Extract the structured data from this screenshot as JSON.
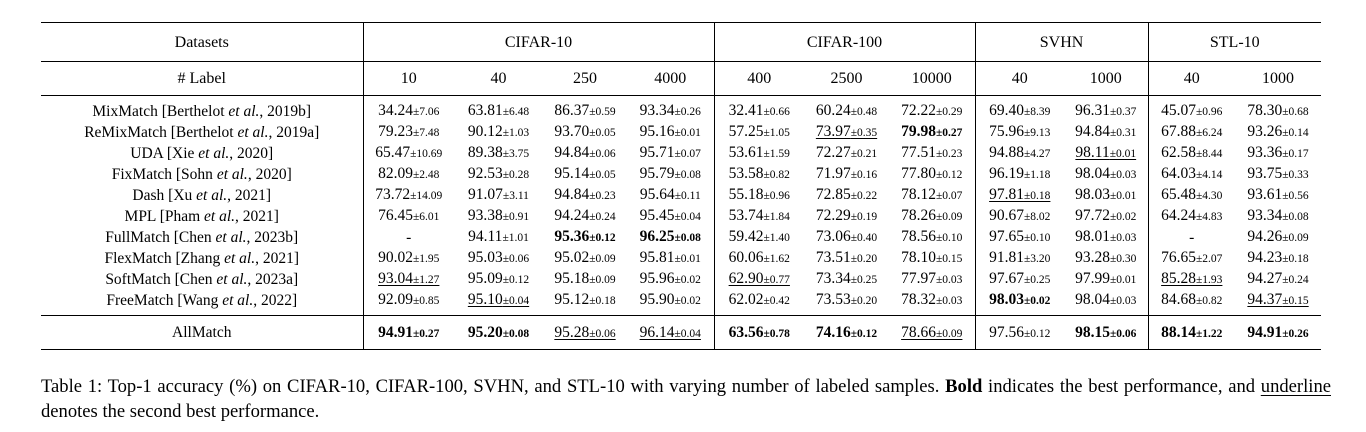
{
  "table": {
    "datasets_label": "Datasets",
    "labels_label": "# Label",
    "groups": [
      {
        "name": "CIFAR-10",
        "labels": [
          "10",
          "40",
          "250",
          "4000"
        ]
      },
      {
        "name": "CIFAR-100",
        "labels": [
          "400",
          "2500",
          "10000"
        ]
      },
      {
        "name": "SVHN",
        "labels": [
          "40",
          "1000"
        ]
      },
      {
        "name": "STL-10",
        "labels": [
          "40",
          "1000"
        ]
      }
    ],
    "rows": [
      {
        "method": "MixMatch [Berthelot et al., 2019b]",
        "cells": [
          {
            "v": "34.24",
            "s": "±7.06",
            "st": ""
          },
          {
            "v": "63.81",
            "s": "±6.48",
            "st": ""
          },
          {
            "v": "86.37",
            "s": "±0.59",
            "st": ""
          },
          {
            "v": "93.34",
            "s": "±0.26",
            "st": ""
          },
          {
            "v": "32.41",
            "s": "±0.66",
            "st": ""
          },
          {
            "v": "60.24",
            "s": "±0.48",
            "st": ""
          },
          {
            "v": "72.22",
            "s": "±0.29",
            "st": ""
          },
          {
            "v": "69.40",
            "s": "±8.39",
            "st": ""
          },
          {
            "v": "96.31",
            "s": "±0.37",
            "st": ""
          },
          {
            "v": "45.07",
            "s": "±0.96",
            "st": ""
          },
          {
            "v": "78.30",
            "s": "±0.68",
            "st": ""
          }
        ]
      },
      {
        "method": "ReMixMatch [Berthelot et al., 2019a]",
        "cells": [
          {
            "v": "79.23",
            "s": "±7.48",
            "st": ""
          },
          {
            "v": "90.12",
            "s": "±1.03",
            "st": ""
          },
          {
            "v": "93.70",
            "s": "±0.05",
            "st": ""
          },
          {
            "v": "95.16",
            "s": "±0.01",
            "st": ""
          },
          {
            "v": "57.25",
            "s": "±1.05",
            "st": ""
          },
          {
            "v": "73.97",
            "s": "±0.35",
            "st": "u"
          },
          {
            "v": "79.98",
            "s": "±0.27",
            "st": "b"
          },
          {
            "v": "75.96",
            "s": "±9.13",
            "st": ""
          },
          {
            "v": "94.84",
            "s": "±0.31",
            "st": ""
          },
          {
            "v": "67.88",
            "s": "±6.24",
            "st": ""
          },
          {
            "v": "93.26",
            "s": "±0.14",
            "st": ""
          }
        ]
      },
      {
        "method": "UDA [Xie et al., 2020]",
        "cells": [
          {
            "v": "65.47",
            "s": "±10.69",
            "st": ""
          },
          {
            "v": "89.38",
            "s": "±3.75",
            "st": ""
          },
          {
            "v": "94.84",
            "s": "±0.06",
            "st": ""
          },
          {
            "v": "95.71",
            "s": "±0.07",
            "st": ""
          },
          {
            "v": "53.61",
            "s": "±1.59",
            "st": ""
          },
          {
            "v": "72.27",
            "s": "±0.21",
            "st": ""
          },
          {
            "v": "77.51",
            "s": "±0.23",
            "st": ""
          },
          {
            "v": "94.88",
            "s": "±4.27",
            "st": ""
          },
          {
            "v": "98.11",
            "s": "±0.01",
            "st": "u"
          },
          {
            "v": "62.58",
            "s": "±8.44",
            "st": ""
          },
          {
            "v": "93.36",
            "s": "±0.17",
            "st": ""
          }
        ]
      },
      {
        "method": "FixMatch [Sohn et al., 2020]",
        "cells": [
          {
            "v": "82.09",
            "s": "±2.48",
            "st": ""
          },
          {
            "v": "92.53",
            "s": "±0.28",
            "st": ""
          },
          {
            "v": "95.14",
            "s": "±0.05",
            "st": ""
          },
          {
            "v": "95.79",
            "s": "±0.08",
            "st": ""
          },
          {
            "v": "53.58",
            "s": "±0.82",
            "st": ""
          },
          {
            "v": "71.97",
            "s": "±0.16",
            "st": ""
          },
          {
            "v": "77.80",
            "s": "±0.12",
            "st": ""
          },
          {
            "v": "96.19",
            "s": "±1.18",
            "st": ""
          },
          {
            "v": "98.04",
            "s": "±0.03",
            "st": ""
          },
          {
            "v": "64.03",
            "s": "±4.14",
            "st": ""
          },
          {
            "v": "93.75",
            "s": "±0.33",
            "st": ""
          }
        ]
      },
      {
        "method": "Dash [Xu et al., 2021]",
        "cells": [
          {
            "v": "73.72",
            "s": "±14.09",
            "st": ""
          },
          {
            "v": "91.07",
            "s": "±3.11",
            "st": ""
          },
          {
            "v": "94.84",
            "s": "±0.23",
            "st": ""
          },
          {
            "v": "95.64",
            "s": "±0.11",
            "st": ""
          },
          {
            "v": "55.18",
            "s": "±0.96",
            "st": ""
          },
          {
            "v": "72.85",
            "s": "±0.22",
            "st": ""
          },
          {
            "v": "78.12",
            "s": "±0.07",
            "st": ""
          },
          {
            "v": "97.81",
            "s": "±0.18",
            "st": "u"
          },
          {
            "v": "98.03",
            "s": "±0.01",
            "st": ""
          },
          {
            "v": "65.48",
            "s": "±4.30",
            "st": ""
          },
          {
            "v": "93.61",
            "s": "±0.56",
            "st": ""
          }
        ]
      },
      {
        "method": "MPL [Pham et al., 2021]",
        "cells": [
          {
            "v": "76.45",
            "s": "±6.01",
            "st": ""
          },
          {
            "v": "93.38",
            "s": "±0.91",
            "st": ""
          },
          {
            "v": "94.24",
            "s": "±0.24",
            "st": ""
          },
          {
            "v": "95.45",
            "s": "±0.04",
            "st": ""
          },
          {
            "v": "53.74",
            "s": "±1.84",
            "st": ""
          },
          {
            "v": "72.29",
            "s": "±0.19",
            "st": ""
          },
          {
            "v": "78.26",
            "s": "±0.09",
            "st": ""
          },
          {
            "v": "90.67",
            "s": "±8.02",
            "st": ""
          },
          {
            "v": "97.72",
            "s": "±0.02",
            "st": ""
          },
          {
            "v": "64.24",
            "s": "±4.83",
            "st": ""
          },
          {
            "v": "93.34",
            "s": "±0.08",
            "st": ""
          }
        ]
      },
      {
        "method": "FullMatch [Chen et al., 2023b]",
        "cells": [
          {
            "v": "-",
            "s": "",
            "st": ""
          },
          {
            "v": "94.11",
            "s": "±1.01",
            "st": ""
          },
          {
            "v": "95.36",
            "s": "±0.12",
            "st": "b"
          },
          {
            "v": "96.25",
            "s": "±0.08",
            "st": "b"
          },
          {
            "v": "59.42",
            "s": "±1.40",
            "st": ""
          },
          {
            "v": "73.06",
            "s": "±0.40",
            "st": ""
          },
          {
            "v": "78.56",
            "s": "±0.10",
            "st": ""
          },
          {
            "v": "97.65",
            "s": "±0.10",
            "st": ""
          },
          {
            "v": "98.01",
            "s": "±0.03",
            "st": ""
          },
          {
            "v": "-",
            "s": "",
            "st": ""
          },
          {
            "v": "94.26",
            "s": "±0.09",
            "st": ""
          }
        ]
      },
      {
        "method": "FlexMatch [Zhang et al., 2021]",
        "cells": [
          {
            "v": "90.02",
            "s": "±1.95",
            "st": ""
          },
          {
            "v": "95.03",
            "s": "±0.06",
            "st": ""
          },
          {
            "v": "95.02",
            "s": "±0.09",
            "st": ""
          },
          {
            "v": "95.81",
            "s": "±0.01",
            "st": ""
          },
          {
            "v": "60.06",
            "s": "±1.62",
            "st": ""
          },
          {
            "v": "73.51",
            "s": "±0.20",
            "st": ""
          },
          {
            "v": "78.10",
            "s": "±0.15",
            "st": ""
          },
          {
            "v": "91.81",
            "s": "±3.20",
            "st": ""
          },
          {
            "v": "93.28",
            "s": "±0.30",
            "st": ""
          },
          {
            "v": "76.65",
            "s": "±2.07",
            "st": ""
          },
          {
            "v": "94.23",
            "s": "±0.18",
            "st": ""
          }
        ]
      },
      {
        "method": "SoftMatch [Chen et al., 2023a]",
        "cells": [
          {
            "v": "93.04",
            "s": "±1.27",
            "st": "u"
          },
          {
            "v": "95.09",
            "s": "±0.12",
            "st": ""
          },
          {
            "v": "95.18",
            "s": "±0.09",
            "st": ""
          },
          {
            "v": "95.96",
            "s": "±0.02",
            "st": ""
          },
          {
            "v": "62.90",
            "s": "±0.77",
            "st": "u"
          },
          {
            "v": "73.34",
            "s": "±0.25",
            "st": ""
          },
          {
            "v": "77.97",
            "s": "±0.03",
            "st": ""
          },
          {
            "v": "97.67",
            "s": "±0.25",
            "st": ""
          },
          {
            "v": "97.99",
            "s": "±0.01",
            "st": ""
          },
          {
            "v": "85.28",
            "s": "±1.93",
            "st": "u"
          },
          {
            "v": "94.27",
            "s": "±0.24",
            "st": ""
          }
        ]
      },
      {
        "method": "FreeMatch [Wang et al., 2022]",
        "cells": [
          {
            "v": "92.09",
            "s": "±0.85",
            "st": ""
          },
          {
            "v": "95.10",
            "s": "±0.04",
            "st": "u"
          },
          {
            "v": "95.12",
            "s": "±0.18",
            "st": ""
          },
          {
            "v": "95.90",
            "s": "±0.02",
            "st": ""
          },
          {
            "v": "62.02",
            "s": "±0.42",
            "st": ""
          },
          {
            "v": "73.53",
            "s": "±0.20",
            "st": ""
          },
          {
            "v": "78.32",
            "s": "±0.03",
            "st": ""
          },
          {
            "v": "98.03",
            "s": "±0.02",
            "st": "b"
          },
          {
            "v": "98.04",
            "s": "±0.03",
            "st": ""
          },
          {
            "v": "84.68",
            "s": "±0.82",
            "st": ""
          },
          {
            "v": "94.37",
            "s": "±0.15",
            "st": "u"
          }
        ]
      }
    ],
    "final_row": {
      "method": "AllMatch",
      "cells": [
        {
          "v": "94.91",
          "s": "±0.27",
          "st": "b"
        },
        {
          "v": "95.20",
          "s": "±0.08",
          "st": "b"
        },
        {
          "v": "95.28",
          "s": "±0.06",
          "st": "u"
        },
        {
          "v": "96.14",
          "s": "±0.04",
          "st": "u"
        },
        {
          "v": "63.56",
          "s": "±0.78",
          "st": "b"
        },
        {
          "v": "74.16",
          "s": "±0.12",
          "st": "b"
        },
        {
          "v": "78.66",
          "s": "±0.09",
          "st": "u"
        },
        {
          "v": "97.56",
          "s": "±0.12",
          "st": ""
        },
        {
          "v": "98.15",
          "s": "±0.06",
          "st": "b"
        },
        {
          "v": "88.14",
          "s": "±1.22",
          "st": "b"
        },
        {
          "v": "94.91",
          "s": "±0.26",
          "st": "b"
        }
      ]
    }
  },
  "caption": {
    "part1": "Table 1: Top-1 accuracy (%) on CIFAR-10, CIFAR-100, SVHN, and STL-10 with varying number of labeled samples. ",
    "bold_word": "Bold",
    "part2": " indicates the best performance, and ",
    "underline_word": "underline",
    "part3": " denotes the second best performance."
  }
}
